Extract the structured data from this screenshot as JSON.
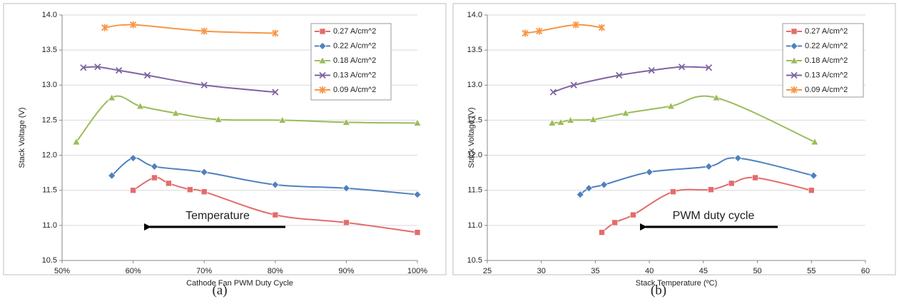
{
  "chart_data": [
    {
      "type": "line",
      "caption": "(a)",
      "x_label": "Cathode Fan PWM Duty Cycle",
      "y_label": "Stack Voltage (V)",
      "annotation": "Temperature",
      "grid": true,
      "legend": "upper right",
      "xlim": [
        50,
        100
      ],
      "xticks": [
        {
          "value": 50,
          "label": "50%"
        },
        {
          "value": 60,
          "label": "60%"
        },
        {
          "value": 70,
          "label": "70%"
        },
        {
          "value": 80,
          "label": "80%"
        },
        {
          "value": 90,
          "label": "90%"
        },
        {
          "value": 100,
          "label": "100%"
        }
      ],
      "ylim": [
        10.5,
        14
      ],
      "yticks": [
        {
          "value": 10.5,
          "label": "10.5"
        },
        {
          "value": 11,
          "label": "11.0"
        },
        {
          "value": 11.5,
          "label": "11.5"
        },
        {
          "value": 12,
          "label": "12.0"
        },
        {
          "value": 12.5,
          "label": "12.5"
        },
        {
          "value": 13,
          "label": "13.0"
        },
        {
          "value": 13.5,
          "label": "13.5"
        },
        {
          "value": 14,
          "label": "14.0"
        }
      ],
      "series": [
        {
          "name": "0.27 A/cm^2",
          "color": "#e36c6c",
          "marker": "square",
          "x": [
            60,
            63,
            65,
            68,
            70,
            80,
            90,
            100
          ],
          "values": [
            11.5,
            11.68,
            11.6,
            11.51,
            11.48,
            11.15,
            11.04,
            10.9
          ]
        },
        {
          "name": "0.22 A/cm^2",
          "color": "#4f81bd",
          "marker": "diamond",
          "x": [
            57,
            60,
            63,
            70,
            80,
            90,
            100
          ],
          "values": [
            11.71,
            11.96,
            11.84,
            11.76,
            11.58,
            11.53,
            11.44
          ]
        },
        {
          "name": "0.18 A/cm^2",
          "color": "#9bbb59",
          "marker": "triangle",
          "x": [
            52,
            57,
            61,
            66,
            72,
            81,
            90,
            100
          ],
          "values": [
            12.19,
            12.82,
            12.7,
            12.6,
            12.51,
            12.5,
            12.47,
            12.46
          ]
        },
        {
          "name": "0.13 A/cm^2",
          "color": "#8064a2",
          "marker": "cross",
          "x": [
            53,
            55,
            58,
            62,
            70,
            80
          ],
          "values": [
            13.25,
            13.26,
            13.21,
            13.14,
            13.0,
            12.9
          ]
        },
        {
          "name": "0.09 A/cm^2",
          "color": "#f79646",
          "marker": "star",
          "x": [
            56,
            60,
            70,
            80
          ],
          "values": [
            13.82,
            13.86,
            13.77,
            13.74
          ]
        }
      ]
    },
    {
      "type": "line",
      "caption": "(b)",
      "x_label": "Stack Temperature (ºC)",
      "y_label": "Stack Voltage (V)",
      "annotation": "PWM duty cycle",
      "grid": true,
      "legend": "upper right",
      "xlim": [
        25,
        60
      ],
      "xticks": [
        25,
        30,
        35,
        40,
        45,
        50,
        55,
        60
      ],
      "ylim": [
        10.5,
        14
      ],
      "yticks": [
        {
          "value": 10.5,
          "label": "10.5"
        },
        {
          "value": 11,
          "label": "11.0"
        },
        {
          "value": 11.5,
          "label": "11.5"
        },
        {
          "value": 12,
          "label": "12.0"
        },
        {
          "value": 12.5,
          "label": "12.5"
        },
        {
          "value": 13,
          "label": "13.0"
        },
        {
          "value": 13.5,
          "label": "13.5"
        },
        {
          "value": 14,
          "label": "14.0"
        }
      ],
      "series": [
        {
          "name": "0.27 A/cm^2",
          "color": "#e36c6c",
          "marker": "square",
          "x": [
            35.6,
            36.8,
            38.5,
            42.2,
            45.7,
            47.6,
            49.8,
            55.0
          ],
          "values": [
            10.9,
            11.04,
            11.15,
            11.48,
            11.51,
            11.6,
            11.68,
            11.5
          ]
        },
        {
          "name": "0.22 A/cm^2",
          "color": "#4f81bd",
          "marker": "diamond",
          "x": [
            33.6,
            34.4,
            35.8,
            40.0,
            45.5,
            48.2,
            55.2
          ],
          "values": [
            11.44,
            11.53,
            11.58,
            11.76,
            11.84,
            11.96,
            11.71
          ]
        },
        {
          "name": "0.18 A/cm^2",
          "color": "#9bbb59",
          "marker": "triangle",
          "x": [
            31.0,
            31.8,
            32.7,
            34.8,
            37.8,
            42.0,
            46.2,
            55.3
          ],
          "values": [
            12.46,
            12.47,
            12.5,
            12.51,
            12.6,
            12.7,
            12.82,
            12.19
          ]
        },
        {
          "name": "0.13 A/cm^2",
          "color": "#8064a2",
          "marker": "cross",
          "x": [
            31.1,
            33.0,
            37.2,
            40.2,
            43.0,
            45.5
          ],
          "values": [
            12.9,
            13.0,
            13.14,
            13.21,
            13.26,
            13.25
          ]
        },
        {
          "name": "0.09 A/cm^2",
          "color": "#f79646",
          "marker": "star",
          "x": [
            28.5,
            29.8,
            33.2,
            35.6
          ],
          "values": [
            13.74,
            13.77,
            13.86,
            13.82
          ]
        }
      ]
    }
  ]
}
